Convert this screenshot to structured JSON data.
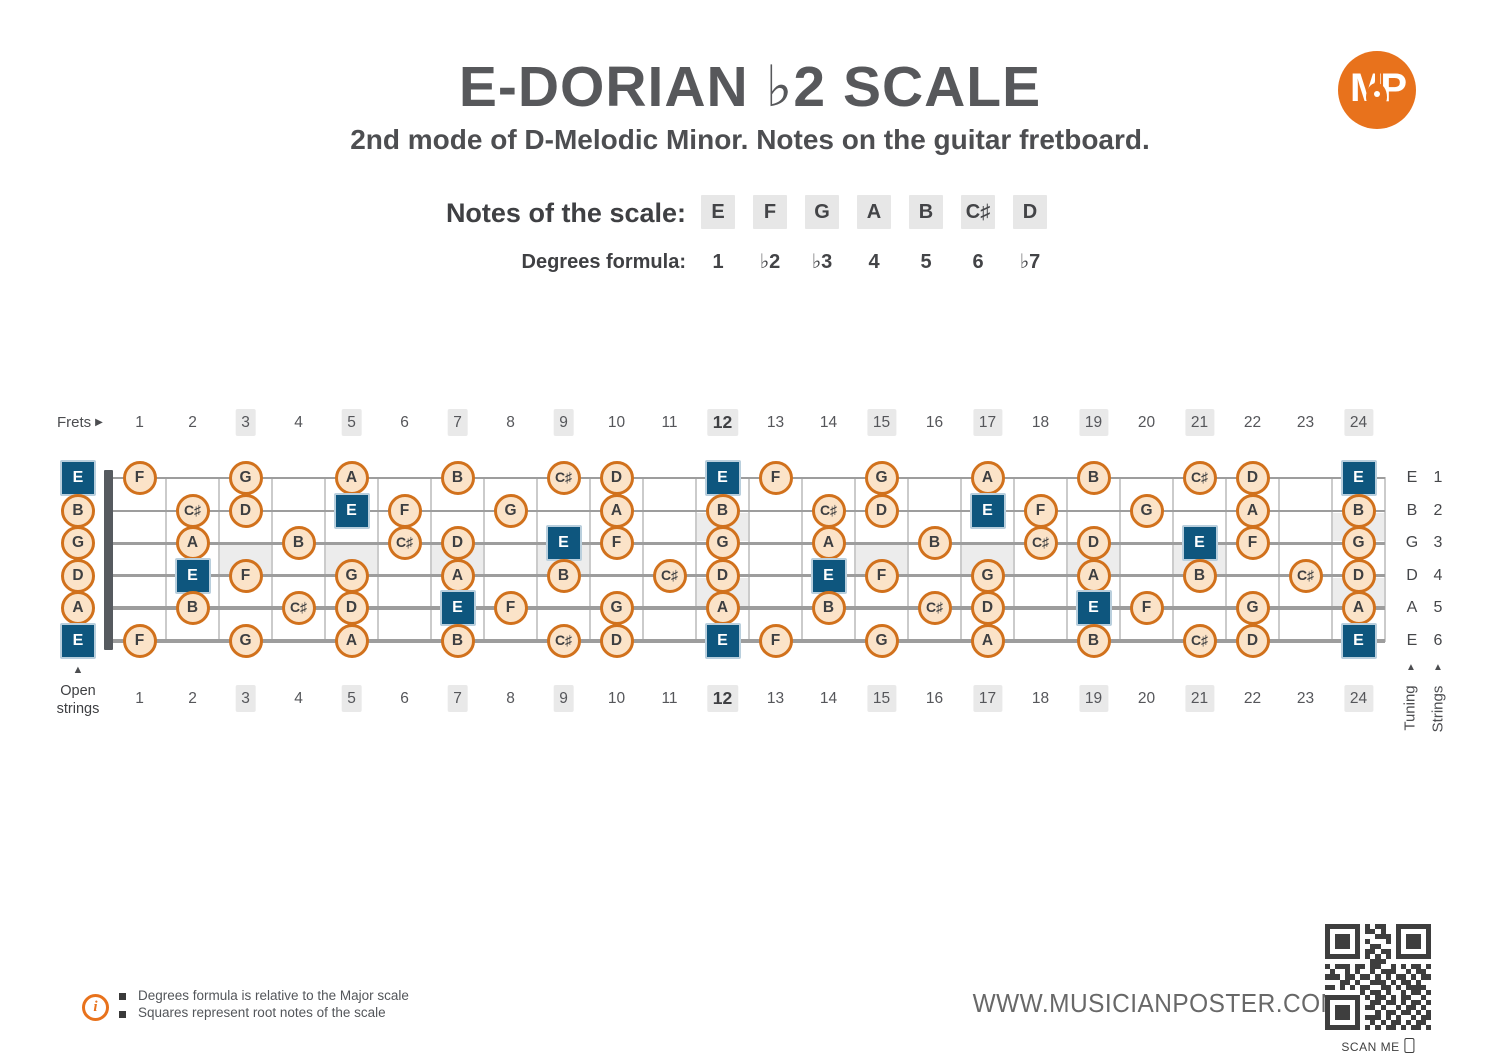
{
  "title": "E-DORIAN ♭2 SCALE",
  "subtitle": "2nd mode of D-Melodic Minor. Notes on the guitar fretboard.",
  "logo": {
    "text": "MP"
  },
  "scale": {
    "notes_label": "Notes of the scale:",
    "notes": [
      "E",
      "F",
      "G",
      "A",
      "B",
      "C♯",
      "D"
    ],
    "degrees_label": "Degrees formula:",
    "degrees": [
      "1",
      "♭2",
      "♭3",
      "4",
      "5",
      "6",
      "♭7"
    ]
  },
  "fretboard": {
    "frets_label": "Frets",
    "frets_arrow": "▶",
    "up_arrow": "▲",
    "open_strings_label": "Open strings",
    "tuning_label": "Tuning",
    "strings_label": "Strings",
    "fret_count": 24,
    "marked_frets": [
      3,
      5,
      7,
      9,
      12,
      15,
      17,
      19,
      21,
      24
    ],
    "double_marker_frets": [
      12,
      24
    ],
    "bold_fret": 12,
    "strings": [
      {
        "number": 1,
        "tuning": "E",
        "open_note": "E",
        "open_root": true,
        "notes": [
          [
            1,
            "F",
            0
          ],
          [
            3,
            "G",
            0
          ],
          [
            5,
            "A",
            0
          ],
          [
            7,
            "B",
            0
          ],
          [
            9,
            "C♯",
            0
          ],
          [
            10,
            "D",
            0
          ],
          [
            12,
            "E",
            1
          ],
          [
            13,
            "F",
            0
          ],
          [
            15,
            "G",
            0
          ],
          [
            17,
            "A",
            0
          ],
          [
            19,
            "B",
            0
          ],
          [
            21,
            "C♯",
            0
          ],
          [
            22,
            "D",
            0
          ],
          [
            24,
            "E",
            1
          ]
        ]
      },
      {
        "number": 2,
        "tuning": "B",
        "open_note": "B",
        "open_root": false,
        "notes": [
          [
            2,
            "C♯",
            0
          ],
          [
            3,
            "D",
            0
          ],
          [
            5,
            "E",
            1
          ],
          [
            6,
            "F",
            0
          ],
          [
            8,
            "G",
            0
          ],
          [
            10,
            "A",
            0
          ],
          [
            12,
            "B",
            0
          ],
          [
            14,
            "C♯",
            0
          ],
          [
            15,
            "D",
            0
          ],
          [
            17,
            "E",
            1
          ],
          [
            18,
            "F",
            0
          ],
          [
            20,
            "G",
            0
          ],
          [
            22,
            "A",
            0
          ],
          [
            24,
            "B",
            0
          ]
        ]
      },
      {
        "number": 3,
        "tuning": "G",
        "open_note": "G",
        "open_root": false,
        "notes": [
          [
            2,
            "A",
            0
          ],
          [
            4,
            "B",
            0
          ],
          [
            6,
            "C♯",
            0
          ],
          [
            7,
            "D",
            0
          ],
          [
            9,
            "E",
            1
          ],
          [
            10,
            "F",
            0
          ],
          [
            12,
            "G",
            0
          ],
          [
            14,
            "A",
            0
          ],
          [
            16,
            "B",
            0
          ],
          [
            18,
            "C♯",
            0
          ],
          [
            19,
            "D",
            0
          ],
          [
            21,
            "E",
            1
          ],
          [
            22,
            "F",
            0
          ],
          [
            24,
            "G",
            0
          ]
        ]
      },
      {
        "number": 4,
        "tuning": "D",
        "open_note": "D",
        "open_root": false,
        "notes": [
          [
            2,
            "E",
            1
          ],
          [
            3,
            "F",
            0
          ],
          [
            5,
            "G",
            0
          ],
          [
            7,
            "A",
            0
          ],
          [
            9,
            "B",
            0
          ],
          [
            11,
            "C♯",
            0
          ],
          [
            12,
            "D",
            0
          ],
          [
            14,
            "E",
            1
          ],
          [
            15,
            "F",
            0
          ],
          [
            17,
            "G",
            0
          ],
          [
            19,
            "A",
            0
          ],
          [
            21,
            "B",
            0
          ],
          [
            23,
            "C♯",
            0
          ],
          [
            24,
            "D",
            0
          ]
        ]
      },
      {
        "number": 5,
        "tuning": "A",
        "open_note": "A",
        "open_root": false,
        "notes": [
          [
            2,
            "B",
            0
          ],
          [
            4,
            "C♯",
            0
          ],
          [
            5,
            "D",
            0
          ],
          [
            7,
            "E",
            1
          ],
          [
            8,
            "F",
            0
          ],
          [
            10,
            "G",
            0
          ],
          [
            12,
            "A",
            0
          ],
          [
            14,
            "B",
            0
          ],
          [
            16,
            "C♯",
            0
          ],
          [
            17,
            "D",
            0
          ],
          [
            19,
            "E",
            1
          ],
          [
            20,
            "F",
            0
          ],
          [
            22,
            "G",
            0
          ],
          [
            24,
            "A",
            0
          ]
        ]
      },
      {
        "number": 6,
        "tuning": "E",
        "open_note": "E",
        "open_root": true,
        "notes": [
          [
            1,
            "F",
            0
          ],
          [
            3,
            "G",
            0
          ],
          [
            5,
            "A",
            0
          ],
          [
            7,
            "B",
            0
          ],
          [
            9,
            "C♯",
            0
          ],
          [
            10,
            "D",
            0
          ],
          [
            12,
            "E",
            1
          ],
          [
            13,
            "F",
            0
          ],
          [
            15,
            "G",
            0
          ],
          [
            17,
            "A",
            0
          ],
          [
            19,
            "B",
            0
          ],
          [
            21,
            "C♯",
            0
          ],
          [
            22,
            "D",
            0
          ],
          [
            24,
            "E",
            1
          ]
        ]
      }
    ]
  },
  "footer": {
    "info_icon_glyph": "i",
    "notes": [
      "Degrees formula is relative to the Major scale",
      "Squares represent root notes of the scale"
    ],
    "website": "WWW.MUSICIANPOSTER.COM",
    "scan_label": "SCAN ME"
  },
  "colors": {
    "accent_orange": "#e8721c",
    "note_fill": "#fbe3c8",
    "note_border": "#d1711c",
    "root_blue": "#0e567e",
    "marker_shade": "#ececec",
    "title_gray": "#57585b"
  },
  "qr_matrix": [
    "111111101011001111111",
    "100000101101001000001",
    "101110100011101011101",
    "101110101000101011101",
    "101110100110001011101",
    "100000101101101000001",
    "111111101010101111111",
    "000000000111000000000",
    "101110110110010101101",
    "010010100101110010110",
    "111011011010101101011",
    "000110100111010110100",
    "110101011001101011110",
    "000000010110100101101",
    "111111101011010110010",
    "100000100110110101101",
    "101110101101001011010",
    "101110100010110110101",
    "101110101110101001011",
    "100000100101011010110",
    "111111101010110101101"
  ]
}
